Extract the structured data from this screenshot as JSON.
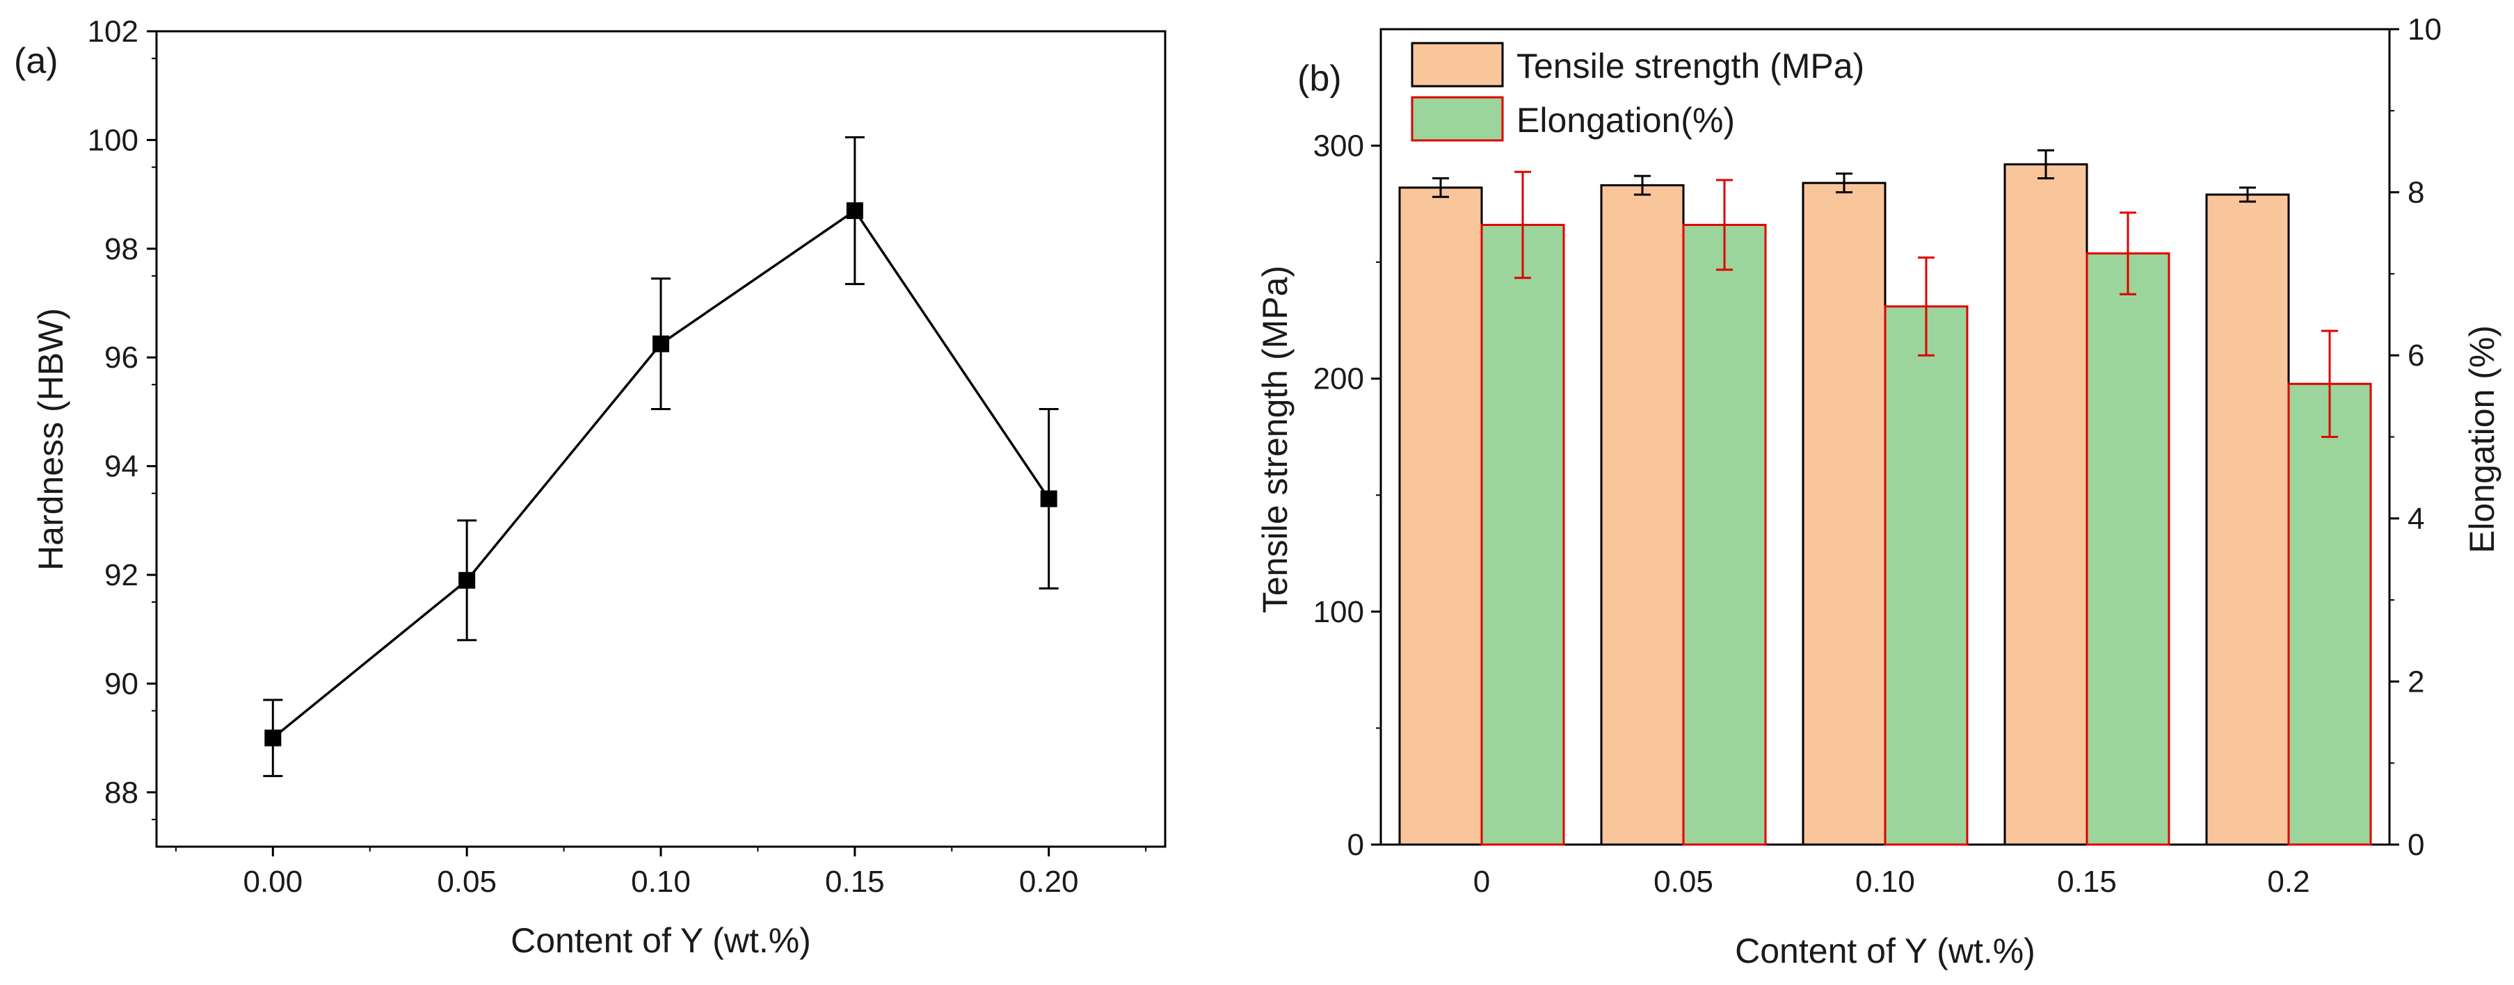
{
  "chart_data": [
    {
      "panel_label": "(a)",
      "type": "line",
      "xlabel": "Content of Y (wt.%)",
      "ylabel": "Hardness (HBW)",
      "xlim": [
        -0.03,
        0.23
      ],
      "ylim": [
        87,
        102
      ],
      "x_ticks": [
        "0.00",
        "0.05",
        "0.10",
        "0.15",
        "0.20"
      ],
      "x_tick_values": [
        0.0,
        0.05,
        0.1,
        0.15,
        0.2
      ],
      "y_ticks": [
        "88",
        "90",
        "92",
        "94",
        "96",
        "98",
        "100",
        "102"
      ],
      "y_tick_values": [
        88,
        90,
        92,
        94,
        96,
        98,
        100,
        102
      ],
      "series": [
        {
          "x": [
            0.0,
            0.05,
            0.1,
            0.15,
            0.2
          ],
          "y": [
            89.0,
            91.9,
            96.25,
            98.7,
            93.4
          ],
          "error": [
            0.7,
            1.1,
            1.2,
            1.35,
            1.65
          ]
        }
      ]
    },
    {
      "panel_label": "(b)",
      "type": "bar",
      "categories": [
        "0",
        "0.05",
        "0.10",
        "0.15",
        "0.2"
      ],
      "xlabel": "Content of Y (wt.%)",
      "ylabel": "Tensile strength (MPa)",
      "ylabel_right": "Elongation (%)",
      "ylim": [
        0,
        350
      ],
      "ylim_right": [
        0,
        10
      ],
      "y_ticks": [
        "0",
        "100",
        "200",
        "300"
      ],
      "y_tick_values": [
        0,
        100,
        200,
        300
      ],
      "y_ticks_right": [
        "0",
        "2",
        "4",
        "6",
        "8",
        "10"
      ],
      "y_tick_values_right": [
        0,
        2,
        4,
        6,
        8,
        10
      ],
      "legend_position": "top-left",
      "series": [
        {
          "name": "Tensile strength (MPa)",
          "axis": "left",
          "values": [
            282,
            283,
            284,
            292,
            279
          ],
          "error": [
            4,
            4,
            4,
            6,
            3
          ],
          "color": "#f9c59b",
          "edge_color": "#000000"
        },
        {
          "name": "Elongation(%)",
          "axis": "right",
          "values": [
            7.6,
            7.6,
            6.6,
            7.25,
            5.65
          ],
          "error": [
            0.65,
            0.55,
            0.6,
            0.5,
            0.65
          ],
          "color": "#9bd59b",
          "edge_color": "#e00000"
        }
      ]
    }
  ]
}
